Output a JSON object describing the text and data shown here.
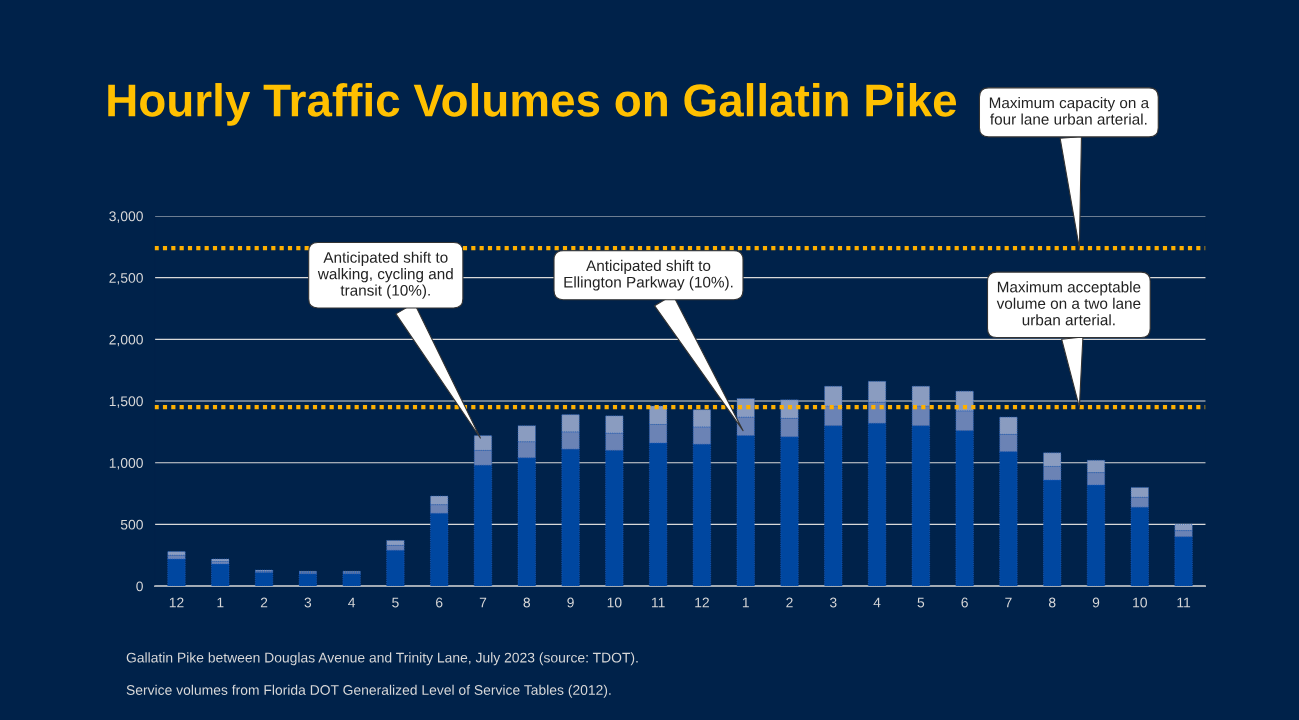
{
  "chart_data": {
    "type": "bar",
    "stacked": true,
    "title": "Hourly Traffic Volumes on Gallatin Pike",
    "categories": [
      "12",
      "1",
      "2",
      "3",
      "4",
      "5",
      "6",
      "7",
      "8",
      "9",
      "10",
      "11",
      "12",
      "1",
      "2",
      "3",
      "4",
      "5",
      "6",
      "7",
      "8",
      "9",
      "10",
      "11"
    ],
    "ylim": [
      0,
      3000
    ],
    "yticks": [
      {
        "value": 0,
        "label": "0"
      },
      {
        "value": 500,
        "label": "500"
      },
      {
        "value": 1000,
        "label": "1,000"
      },
      {
        "value": 1500,
        "label": "1,500"
      },
      {
        "value": 2000,
        "label": "2,000"
      },
      {
        "value": 2500,
        "label": "2,500"
      },
      {
        "value": 3000,
        "label": "3,000"
      }
    ],
    "grid": "y",
    "series": [
      {
        "color": "#0047a0",
        "values": [
          220,
          180,
          110,
          100,
          100,
          290,
          590,
          980,
          1040,
          1110,
          1100,
          1160,
          1150,
          1220,
          1210,
          1300,
          1320,
          1300,
          1260,
          1090,
          860,
          820,
          640,
          400
        ]
      },
      {
        "color": "#6b83b5",
        "values": [
          30,
          20,
          10,
          10,
          10,
          40,
          70,
          120,
          130,
          140,
          140,
          150,
          140,
          150,
          150,
          160,
          170,
          160,
          160,
          140,
          110,
          100,
          80,
          50
        ]
      },
      {
        "color": "#8a9cc0",
        "values": [
          30,
          20,
          10,
          10,
          10,
          40,
          70,
          120,
          130,
          140,
          140,
          150,
          140,
          150,
          150,
          160,
          170,
          160,
          160,
          140,
          110,
          100,
          80,
          50
        ]
      }
    ],
    "ref_lines": [
      {
        "axis": "y",
        "value": 2740,
        "label": "Maximum capacity on a\nfour lane urban arterial.",
        "color": "#ffb000",
        "line_style": "dotted"
      },
      {
        "axis": "y",
        "value": 1450,
        "label": "Maximum acceptable\nvolume on a two lane\nurban arterial.",
        "color": "#ffb000",
        "line_style": "dotted"
      }
    ],
    "annotations": [
      "Anticipated shift to\nwalking, cycling and\ntransit (10%).",
      "Anticipated shift to\nEllington Parkway (10%).",
      "Gallatin Pike between Douglas Avenue and Trinity Lane, July 2023 (source: TDOT).",
      "Service volumes from Florida DOT Generalized Level of Service Tables (2012)."
    ]
  }
}
